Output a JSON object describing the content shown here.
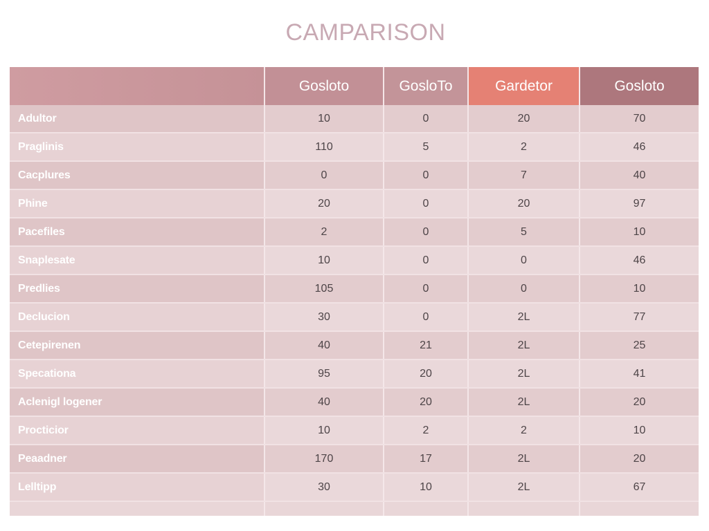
{
  "chart_data": {
    "type": "table",
    "title": "CAMPARISON",
    "columns": [
      "",
      "Gosloto",
      "GosloTo",
      "Gardetor",
      "Gosloto"
    ],
    "rows": [
      {
        "label": "Adultor",
        "values": [
          "10",
          "0",
          "20",
          "70"
        ]
      },
      {
        "label": "Praglinis",
        "values": [
          "110",
          "5",
          "2",
          "46"
        ]
      },
      {
        "label": "Cacplures",
        "values": [
          "0",
          "0",
          "7",
          "40"
        ]
      },
      {
        "label": "Phine",
        "values": [
          "20",
          "0",
          "20",
          "97"
        ]
      },
      {
        "label": "Pacefiles",
        "values": [
          "2",
          "0",
          "5",
          "10"
        ]
      },
      {
        "label": "Snaplesate",
        "values": [
          "10",
          "0",
          "0",
          "46"
        ]
      },
      {
        "label": "Predlies",
        "values": [
          "105",
          "0",
          "0",
          "10"
        ]
      },
      {
        "label": "Declucion",
        "values": [
          "30",
          "0",
          "2L",
          "77"
        ]
      },
      {
        "label": "Cetepirenen",
        "values": [
          "40",
          "21",
          "2L",
          "25"
        ]
      },
      {
        "label": "Specationa",
        "values": [
          "95",
          "20",
          "2L",
          "41"
        ]
      },
      {
        "label": "Aclenigl logener",
        "values": [
          "40",
          "20",
          "2L",
          "20"
        ]
      },
      {
        "label": "Procticior",
        "values": [
          "10",
          "2",
          "2",
          "10"
        ]
      },
      {
        "label": "Peaadner",
        "values": [
          "170",
          "17",
          "2L",
          "20"
        ]
      },
      {
        "label": "Lelltipp",
        "values": [
          "30",
          "10",
          "2L",
          "67"
        ]
      }
    ],
    "colors": {
      "header": "#c29096",
      "header_highlight": "#e58174",
      "header_dark": "#ad777d",
      "row_odd": "#e3ccce",
      "row_even": "#ead8da",
      "title": "#c8a9b3"
    }
  }
}
